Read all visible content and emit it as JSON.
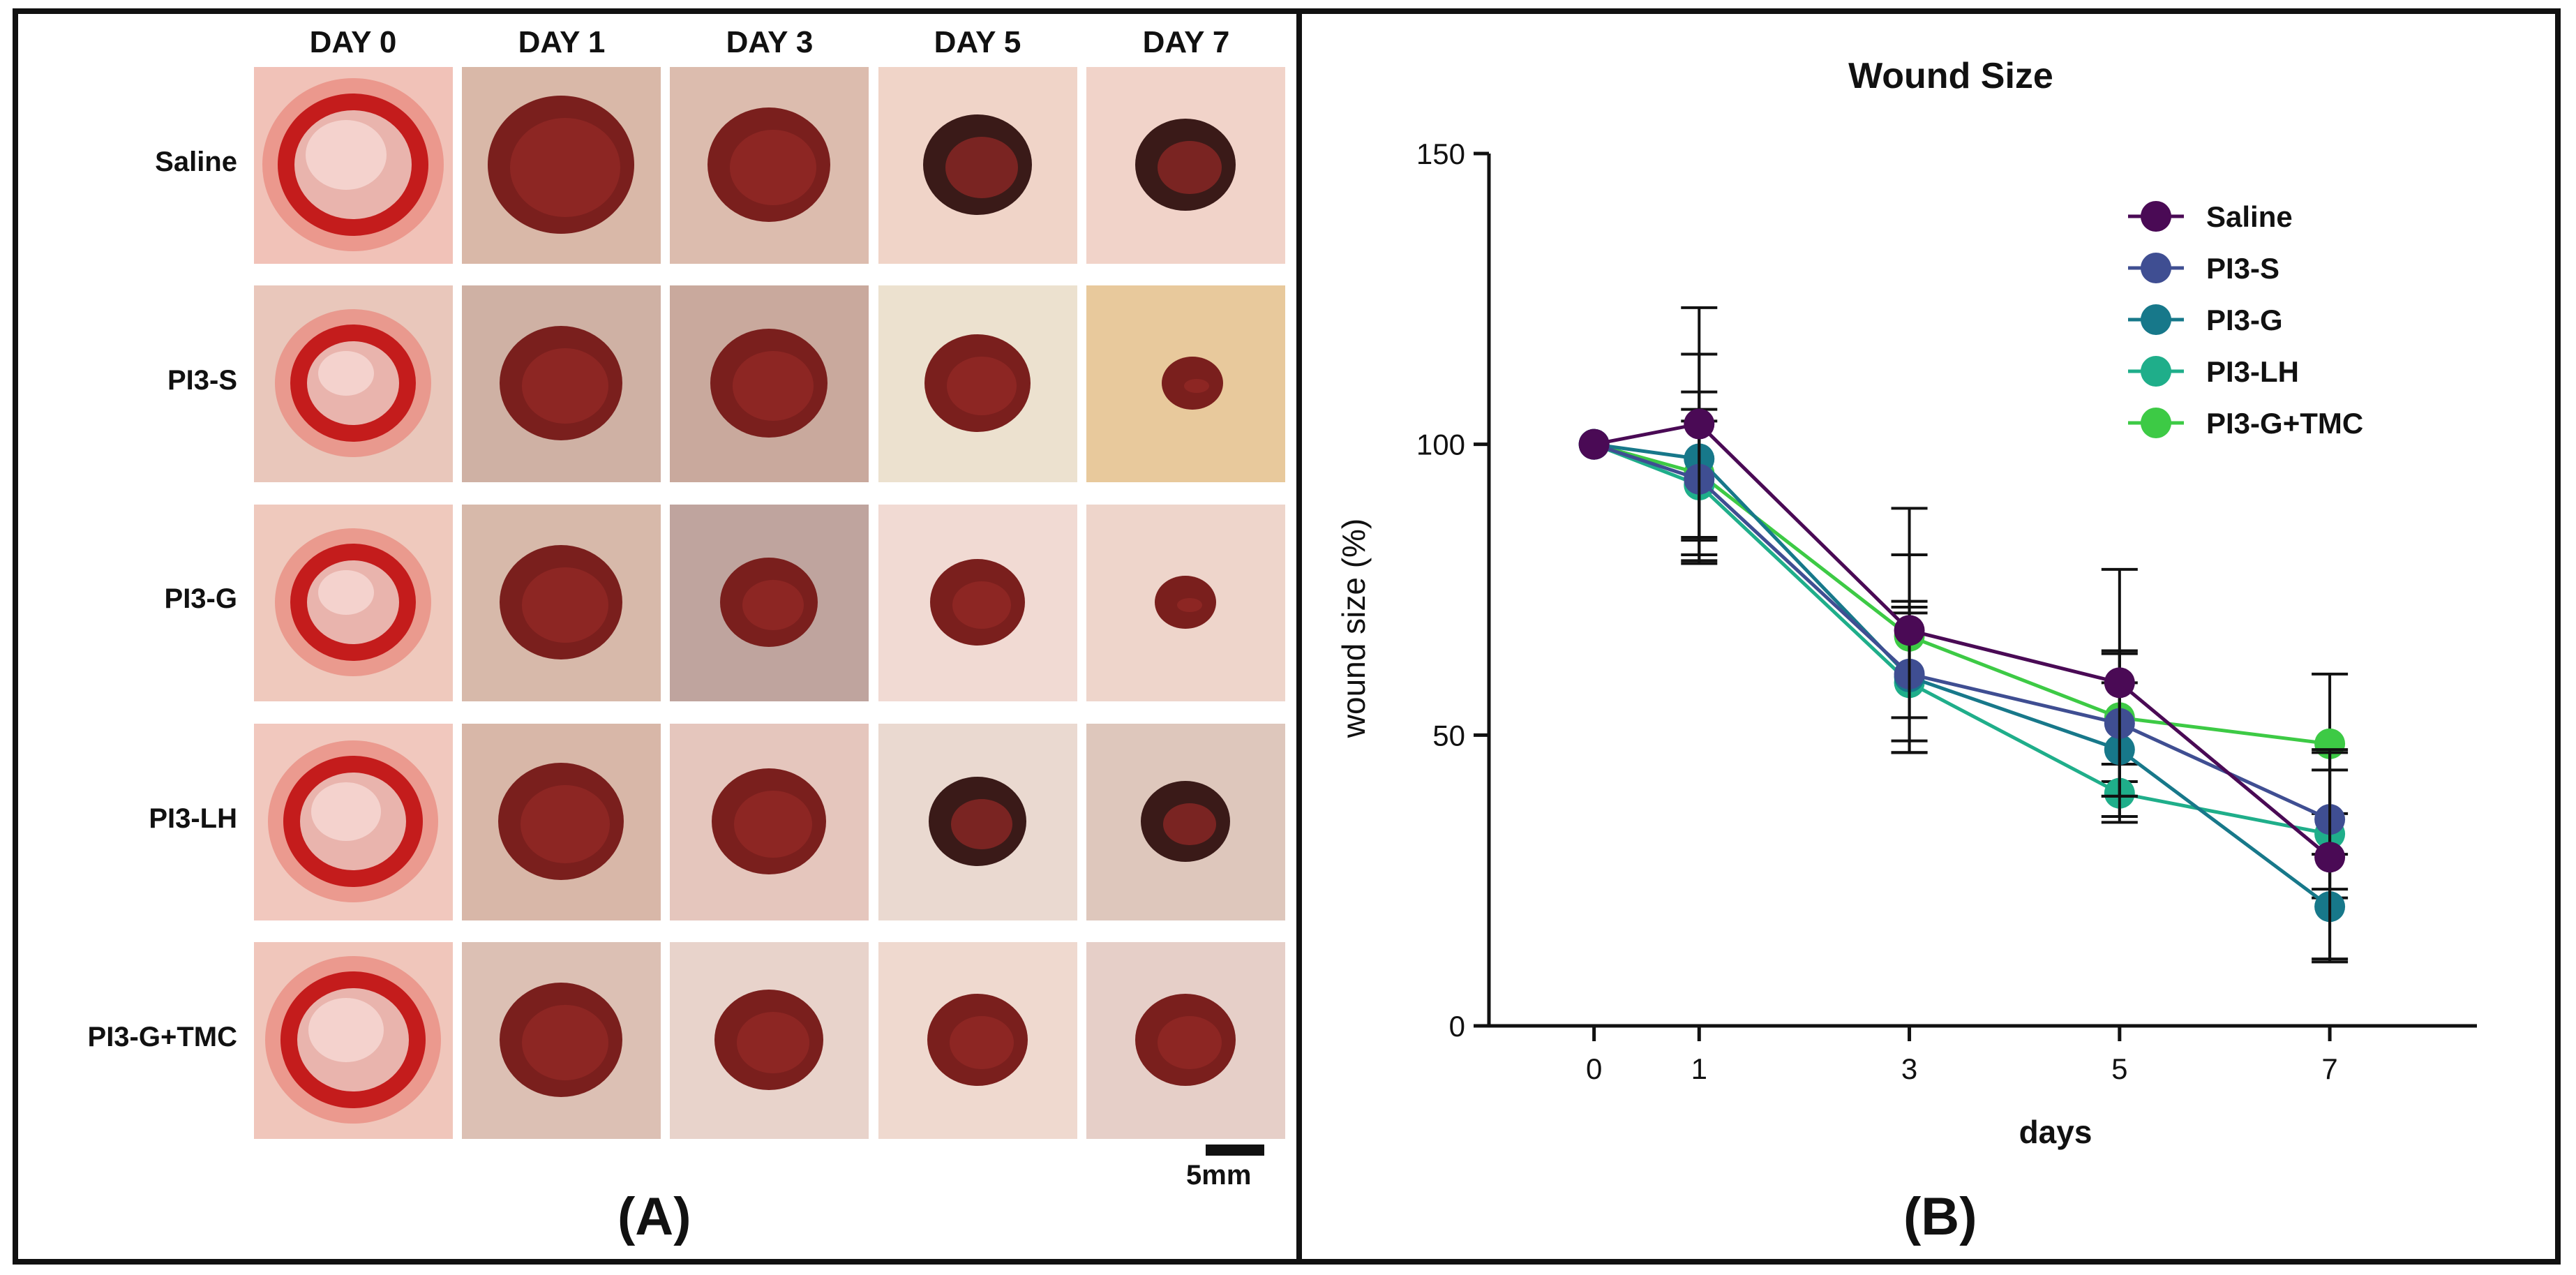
{
  "panel_a": {
    "days": [
      "DAY 0",
      "DAY 1",
      "DAY 3",
      "DAY 5",
      "DAY 7"
    ],
    "groups": [
      "Saline",
      "PI3-S",
      "PI3-G",
      "PI3-LH",
      "PI3-G+TMC"
    ],
    "scale_label": "5mm",
    "label": "(A)"
  },
  "panel_b": {
    "label": "(B)"
  },
  "chart_data": {
    "type": "line",
    "title": "Wound Size",
    "xlabel": "days",
    "ylabel": "wound size (%)",
    "x": [
      0,
      1,
      3,
      5,
      7
    ],
    "x_ticks": [
      "0",
      "1",
      "3",
      "5",
      "7"
    ],
    "ylim": [
      0,
      150
    ],
    "y_ticks": [
      "0",
      "50",
      "100",
      "150"
    ],
    "grid": false,
    "legend_position": "top-right",
    "series": [
      {
        "name": "Saline",
        "color": "#4a0a55",
        "values": [
          100,
          103.5,
          68,
          59,
          29
        ],
        "error": [
          0,
          20,
          21,
          19.5,
          18
        ]
      },
      {
        "name": "PI3-S",
        "color": "#3f4e92",
        "values": [
          100,
          94,
          60.5,
          52,
          35.5
        ],
        "error": [
          0,
          10,
          11.5,
          12.5,
          12
        ]
      },
      {
        "name": "PI3-G",
        "color": "#17788a",
        "values": [
          100,
          97.5,
          60,
          47.5,
          20.5
        ],
        "error": [
          0,
          18,
          13,
          11.5,
          9
        ]
      },
      {
        "name": "PI3-LH",
        "color": "#1fae8a",
        "values": [
          100,
          93,
          59,
          40,
          33
        ],
        "error": [
          0,
          13,
          12,
          5,
          11
        ]
      },
      {
        "name": "PI3-G+TMC",
        "color": "#3dca45",
        "values": [
          100,
          95,
          67,
          53,
          48.5
        ],
        "error": [
          0,
          14,
          14,
          11,
          12
        ]
      }
    ]
  }
}
